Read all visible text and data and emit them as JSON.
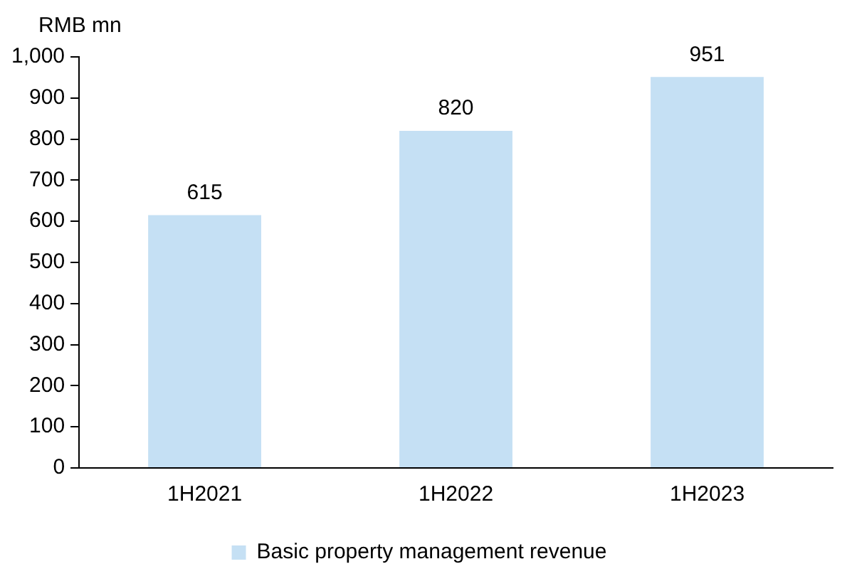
{
  "chart_data": {
    "type": "bar",
    "ylabel": "RMB mn",
    "categories": [
      "1H2021",
      "1H2022",
      "1H2023"
    ],
    "series": [
      {
        "name": "Basic property management revenue",
        "color": "#c5e0f4",
        "values": [
          615,
          820,
          951
        ]
      }
    ],
    "ylim": [
      0,
      1000
    ],
    "yticks": [
      0,
      100,
      200,
      300,
      400,
      500,
      600,
      700,
      800,
      900,
      {
        "value": 1000,
        "label": "1,000"
      }
    ],
    "grid": false,
    "legend": "bottom",
    "data_labels": true
  }
}
